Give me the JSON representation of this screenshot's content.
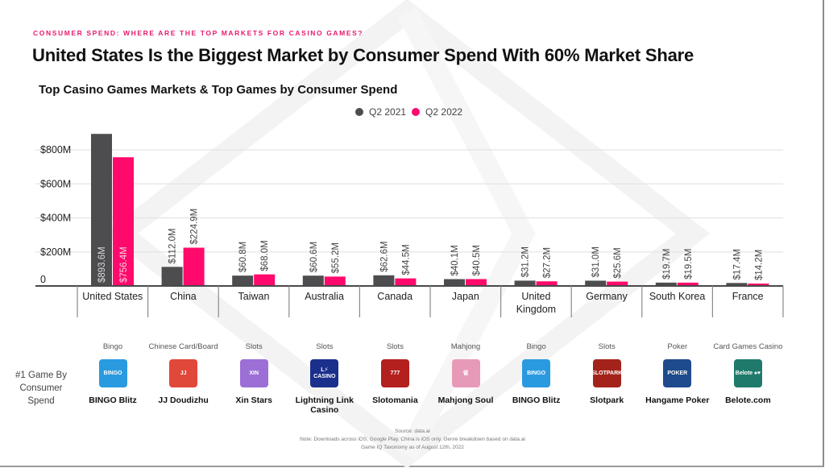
{
  "header": {
    "kicker": "CONSUMER SPEND: WHERE ARE THE TOP MARKETS FOR CASINO GAMES?",
    "title": "United States Is the Biggest Market by Consumer Spend With 60% Market Share"
  },
  "colors": {
    "q2_2021": "#4d4d4f",
    "q2_2022": "#ff0a6c",
    "kicker": "#e8196f"
  },
  "chart_data": {
    "type": "bar",
    "title": "Top Casino Games Markets & Top Games by Consumer Spend",
    "xlabel": "",
    "ylabel": "",
    "ylim": [
      0,
      800
    ],
    "yunit": "USD millions",
    "yticks": [
      0,
      200,
      400,
      600,
      800
    ],
    "ytick_labels": [
      "0",
      "$200M",
      "$400M",
      "$600M",
      "$800M"
    ],
    "grid": true,
    "legend_position": "top-center",
    "categories": [
      "United States",
      "China",
      "Taiwan",
      "Australia",
      "Canada",
      "Japan",
      "United Kingdom",
      "Germany",
      "South Korea",
      "France"
    ],
    "category_label_lines": [
      [
        "United States"
      ],
      [
        "China"
      ],
      [
        "Taiwan"
      ],
      [
        "Australia"
      ],
      [
        "Canada"
      ],
      [
        "Japan"
      ],
      [
        "United",
        "Kingdom"
      ],
      [
        "Germany"
      ],
      [
        "South Korea"
      ],
      [
        "France"
      ]
    ],
    "series": [
      {
        "name": "Q2 2021",
        "values": [
          893.6,
          112.0,
          60.8,
          60.6,
          62.6,
          40.1,
          31.2,
          31.0,
          19.7,
          17.4
        ],
        "labels": [
          "$893.6M",
          "$112.0M",
          "$60.8M",
          "$60.6M",
          "$62.6M",
          "$40.1M",
          "$31.2M",
          "$31.0M",
          "$19.7M",
          "$17.4M"
        ]
      },
      {
        "name": "Q2 2022",
        "values": [
          756.4,
          224.9,
          68.0,
          55.2,
          44.5,
          40.5,
          27.2,
          25.6,
          19.5,
          14.2
        ],
        "labels": [
          "$756.4M",
          "$224.9M",
          "$68.0M",
          "$55.2M",
          "$44.5M",
          "$40.5M",
          "$27.2M",
          "$25.6M",
          "$19.5M",
          "$14.2M"
        ]
      }
    ]
  },
  "legend": [
    {
      "label": "Q2 2021"
    },
    {
      "label": "Q2 2022"
    }
  ],
  "top_games": {
    "row_label": "#1 Game By Consumer Spend",
    "games": [
      {
        "genre": "Bingo",
        "name": "BINGO Blitz",
        "icon": "bingo-blitz-icon",
        "icon_text": "BINGO",
        "icon_color": "#2a9ae0"
      },
      {
        "genre": "Chinese Card/Board",
        "name": "JJ Doudizhu",
        "icon": "jj-doudizhu-icon",
        "icon_text": "JJ",
        "icon_color": "#e0483a"
      },
      {
        "genre": "Slots",
        "name": "Xin Stars",
        "icon": "xin-stars-icon",
        "icon_text": "XIN",
        "icon_color": "#9b6fd6"
      },
      {
        "genre": "Slots",
        "name": "Lightning Link Casino",
        "icon": "lightning-link-casino-icon",
        "icon_text": "L⚡ CASINO",
        "icon_color": "#1b2f8c"
      },
      {
        "genre": "Slots",
        "name": "Slotomania",
        "icon": "slotomania-icon",
        "icon_text": "777",
        "icon_color": "#b3201e"
      },
      {
        "genre": "Mahjong",
        "name": "Mahjong Soul",
        "icon": "mahjong-soul-icon",
        "icon_text": "雀",
        "icon_color": "#e79ab8"
      },
      {
        "genre": "Bingo",
        "name": "BINGO Blitz",
        "icon": "bingo-blitz-icon",
        "icon_text": "BINGO",
        "icon_color": "#2a9ae0"
      },
      {
        "genre": "Slots",
        "name": "Slotpark",
        "icon": "slotpark-icon",
        "icon_text": "SLOTPARK",
        "icon_color": "#a3231a"
      },
      {
        "genre": "Poker",
        "name": "Hangame Poker",
        "icon": "hangame-poker-icon",
        "icon_text": "POKER",
        "icon_color": "#1d4b8c"
      },
      {
        "genre": "Card Games Casino",
        "name": "Belote.com",
        "icon": "belote-icon",
        "icon_text": "Belote ♠♥",
        "icon_color": "#1f7a6c"
      }
    ]
  },
  "footer": {
    "source": "Source: data.ai",
    "note": "Note: Downloads across iOS, Google Play. China is iOS only. Genre breakdown based on data.ai",
    "note2": "Game IQ Taxonomy as of August 12th, 2022"
  }
}
